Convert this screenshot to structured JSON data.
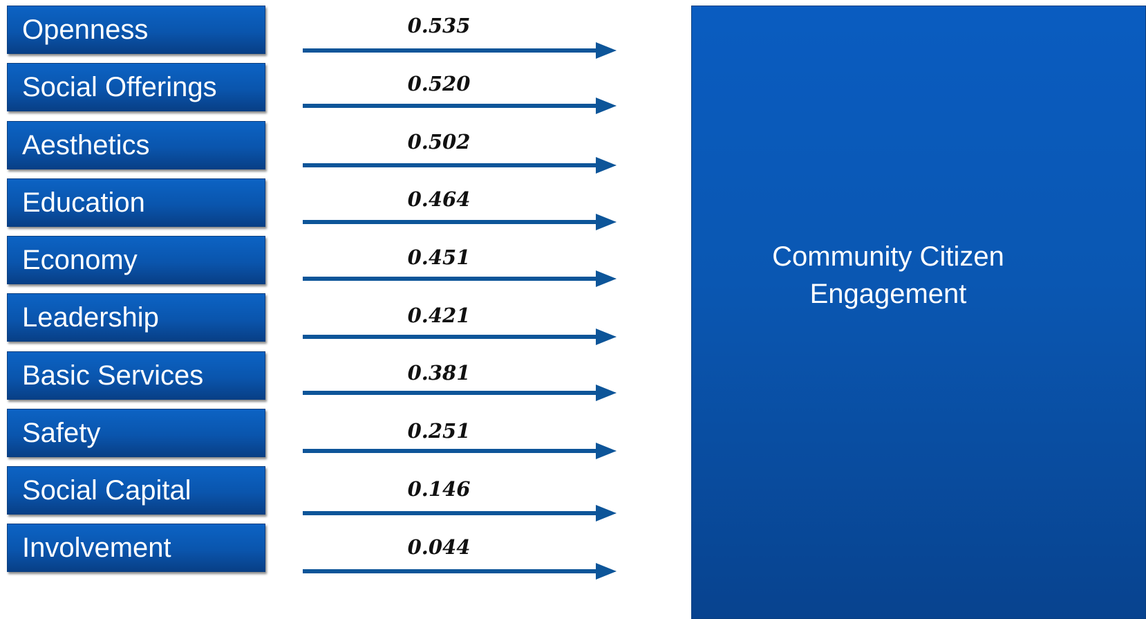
{
  "factors": [
    {
      "label": "Openness",
      "coefficient": "0.535"
    },
    {
      "label": "Social Offerings",
      "coefficient": "0.520"
    },
    {
      "label": "Aesthetics",
      "coefficient": "0.502"
    },
    {
      "label": "Education",
      "coefficient": "0.464"
    },
    {
      "label": "Economy",
      "coefficient": "0.451"
    },
    {
      "label": "Leadership",
      "coefficient": "0.421"
    },
    {
      "label": "Basic Services",
      "coefficient": "0.381"
    },
    {
      "label": "Safety",
      "coefficient": "0.251"
    },
    {
      "label": "Social Capital",
      "coefficient": "0.146"
    },
    {
      "label": "Involvement",
      "coefficient": "0.044"
    }
  ],
  "target": {
    "label": "Community Citizen\nEngagement"
  },
  "colors": {
    "box": "#0a57b2",
    "arrow": "#0d5599",
    "text": "#ffffff"
  }
}
